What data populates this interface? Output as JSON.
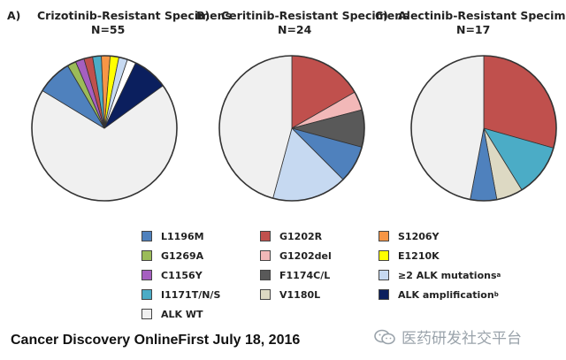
{
  "chart_data": [
    {
      "type": "pie",
      "panel": "A)",
      "title": "Crizotinib-Resistant Specimens",
      "n_label": "N=55",
      "slices": [
        {
          "label": "ALK WT",
          "value": 63.6,
          "color": "#f0f0f0"
        },
        {
          "label": "L1196M",
          "value": 7.3,
          "color": "#4f81bd"
        },
        {
          "label": "G1269A",
          "value": 1.8,
          "color": "#9bbb59"
        },
        {
          "label": "C1156Y",
          "value": 1.8,
          "color": "#a55fc0"
        },
        {
          "label": "?",
          "value": 1.8,
          "color": "#c0504d"
        },
        {
          "label": "I1171T/N/S",
          "value": 1.8,
          "color": "#4bacc6"
        },
        {
          "label": "S1206Y",
          "value": 1.8,
          "color": "#f79646"
        },
        {
          "label": "E1210K",
          "value": 1.8,
          "color": "#ffff00"
        },
        {
          "label": "≥2 ALK mutations",
          "value": 1.8,
          "color": "#c6d9f1"
        },
        {
          "label": "?",
          "value": 1.8,
          "color": "#ffffff"
        },
        {
          "label": "ALK amplification",
          "value": 7.3,
          "color": "#0b1f5e"
        }
      ]
    },
    {
      "type": "pie",
      "panel": "B)",
      "title": "Ceritinib-Resistant Specimens",
      "n_label": "N=24",
      "slices": [
        {
          "label": "G1202R",
          "value": 16.7,
          "color": "#c0504d"
        },
        {
          "label": "G1202del",
          "value": 4.2,
          "color": "#f2b8b8"
        },
        {
          "label": "F1174C/L",
          "value": 8.3,
          "color": "#595959"
        },
        {
          "label": "L1196M",
          "value": 8.3,
          "color": "#4f81bd"
        },
        {
          "label": "≥2 ALK mutations",
          "value": 16.7,
          "color": "#c6d9f1"
        },
        {
          "label": "ALK WT",
          "value": 45.8,
          "color": "#f0f0f0"
        }
      ]
    },
    {
      "type": "pie",
      "panel": "C)",
      "title": "Alectinib-Resistant Specimens",
      "n_label": "N=17",
      "slices": [
        {
          "label": "G1202R",
          "value": 29.4,
          "color": "#c0504d"
        },
        {
          "label": "I1171T/N/S",
          "value": 11.8,
          "color": "#4bacc6"
        },
        {
          "label": "V1180L",
          "value": 5.9,
          "color": "#ddd9c3"
        },
        {
          "label": "L1196M",
          "value": 5.9,
          "color": "#4f81bd"
        },
        {
          "label": "ALK WT",
          "value": 47.0,
          "color": "#f0f0f0"
        }
      ]
    }
  ],
  "legend": [
    {
      "label": "L1196M",
      "sup": "",
      "color": "#4f81bd"
    },
    {
      "label": "G1269A",
      "sup": "",
      "color": "#9bbb59"
    },
    {
      "label": "C1156Y",
      "sup": "",
      "color": "#a55fc0"
    },
    {
      "label": "I1171T/N/S",
      "sup": "",
      "color": "#4bacc6"
    },
    {
      "label": "ALK WT",
      "sup": "",
      "color": "#f0f0f0"
    },
    {
      "label": "G1202R",
      "sup": "",
      "color": "#c0504d"
    },
    {
      "label": "G1202del",
      "sup": "",
      "color": "#f2b8b8"
    },
    {
      "label": "F1174C/L",
      "sup": "",
      "color": "#595959"
    },
    {
      "label": "V1180L",
      "sup": "",
      "color": "#ddd9c3"
    },
    {
      "label": "S1206Y",
      "sup": "",
      "color": "#f79646"
    },
    {
      "label": "E1210K",
      "sup": "",
      "color": "#ffff00"
    },
    {
      "label": "≥2 ALK mutations",
      "sup": "a",
      "color": "#c6d9f1"
    },
    {
      "label": "ALK amplification",
      "sup": "b",
      "color": "#0b1f5e"
    }
  ],
  "footer": "Cancer Discovery OnlineFirst July 18, 2016",
  "watermark": "医药研发社交平台",
  "watermark_icon": "wechat-icon"
}
